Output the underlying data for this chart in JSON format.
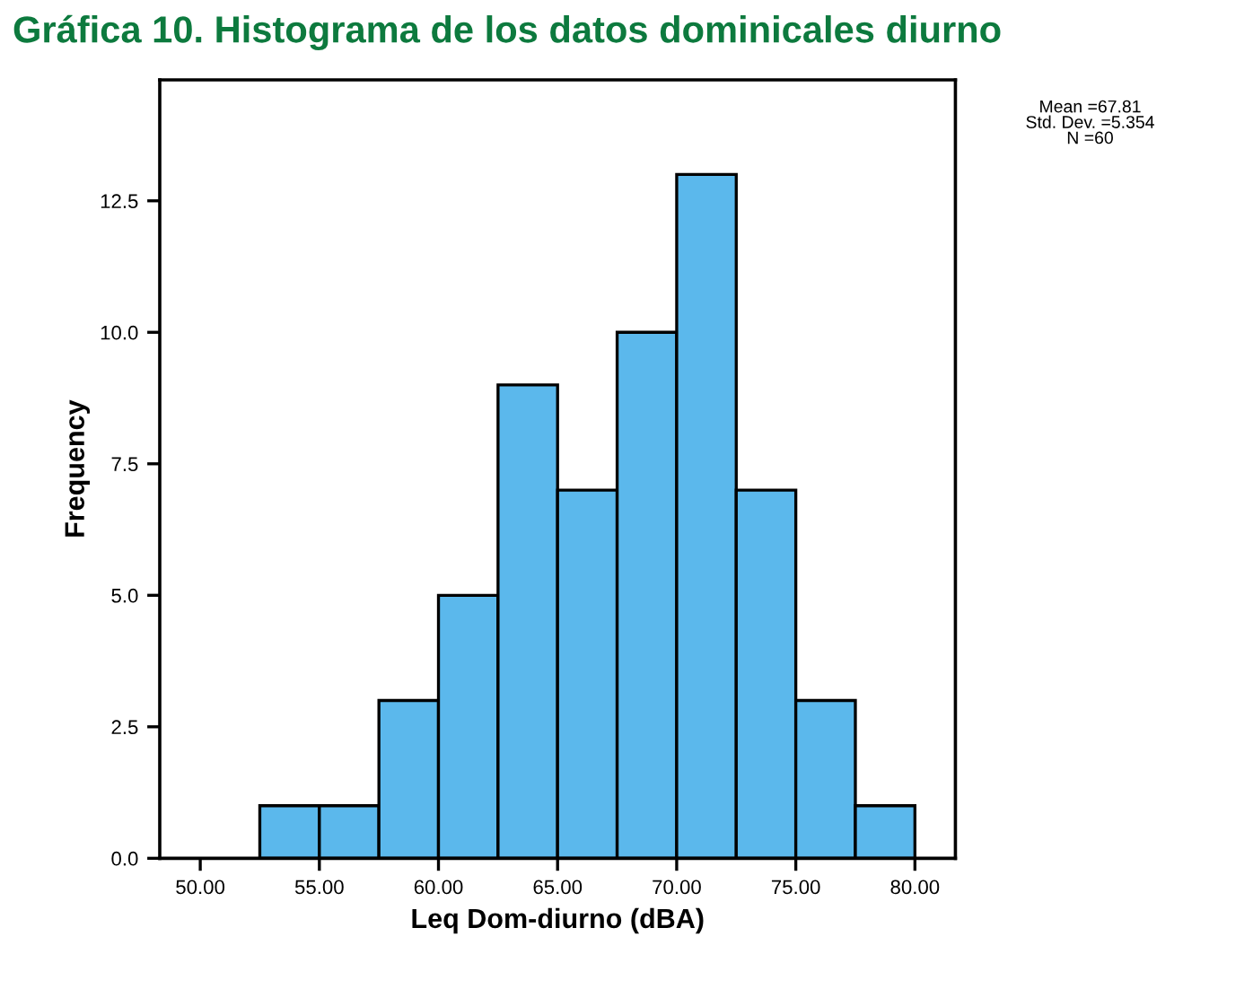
{
  "chart_data": {
    "type": "histogram",
    "title": "Gráfica 10. Histograma de los datos dominicales diurno",
    "xlabel": "Leq Dom-diurno (dBA)",
    "ylabel": "Frequency",
    "bins": [
      52.5,
      55,
      57.5,
      60,
      62.5,
      65,
      67.5,
      70,
      72.5,
      75,
      77.5,
      80
    ],
    "values": [
      1,
      1,
      3,
      5,
      9,
      7,
      10,
      13,
      7,
      3,
      1
    ],
    "color": "#5bb8ec",
    "xlim": [
      48.3,
      81.7
    ],
    "xticks": [
      {
        "value": 50,
        "label": "50.00"
      },
      {
        "value": 55,
        "label": "55.00"
      },
      {
        "value": 60,
        "label": "60.00"
      },
      {
        "value": 65,
        "label": "65.00"
      },
      {
        "value": 70,
        "label": "70.00"
      },
      {
        "value": 75,
        "label": "75.00"
      },
      {
        "value": 80,
        "label": "80.00"
      }
    ],
    "ylim": [
      0,
      14.8
    ],
    "yticks": [
      {
        "value": 0,
        "label": "0.0"
      },
      {
        "value": 2.5,
        "label": "2.5"
      },
      {
        "value": 5,
        "label": "5.0"
      },
      {
        "value": 7.5,
        "label": "7.5"
      },
      {
        "value": 10,
        "label": "10.0"
      },
      {
        "value": 12.5,
        "label": "12.5"
      }
    ],
    "grid": false,
    "annotations": [
      "Mean =67.81\nStd. Dev. =5.354\nN =60"
    ]
  }
}
